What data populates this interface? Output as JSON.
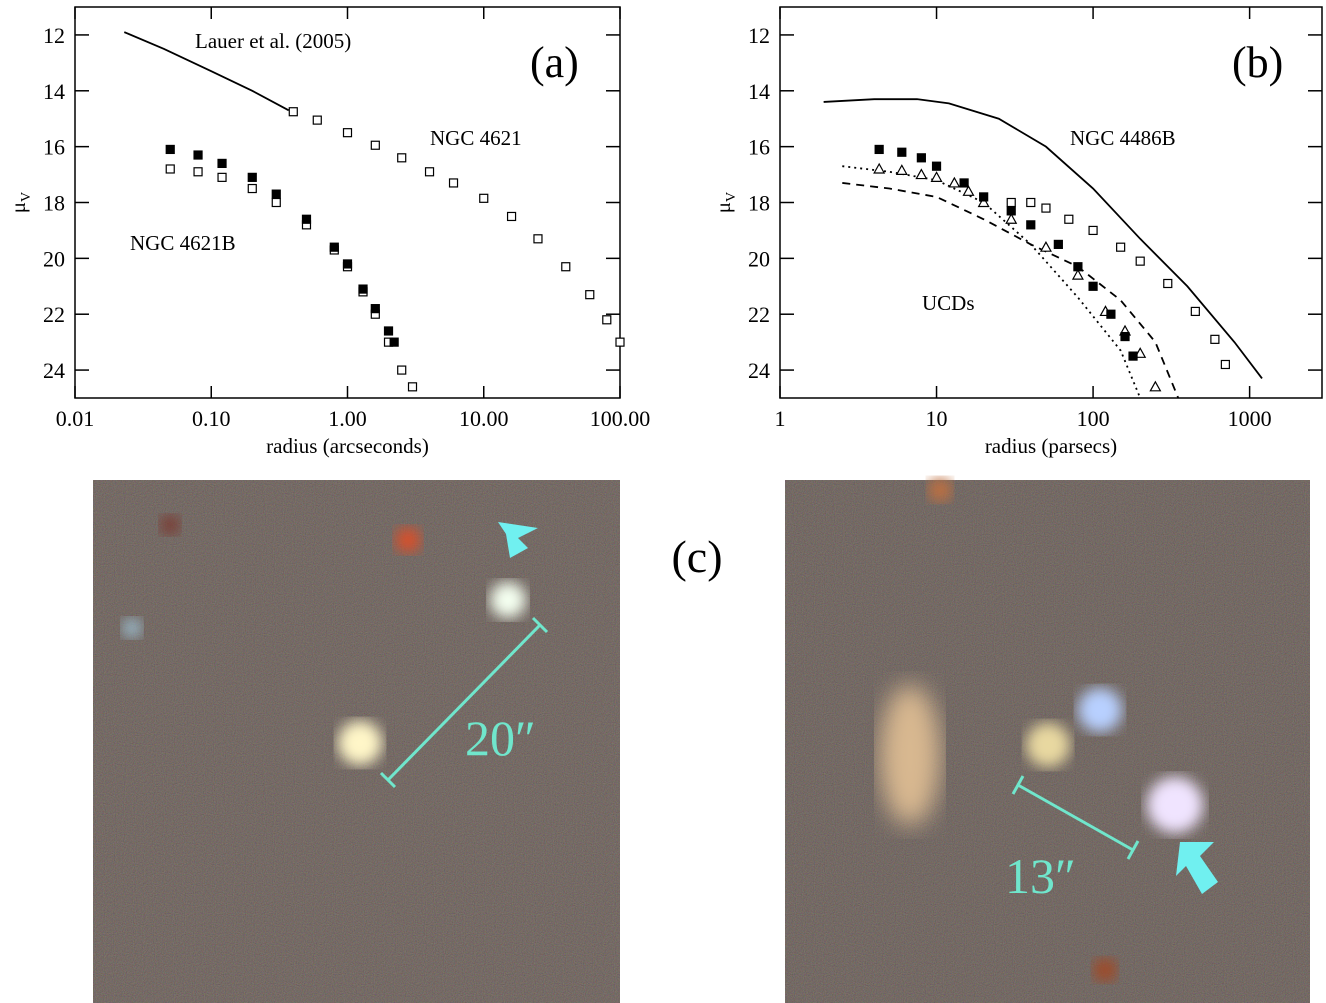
{
  "chart_data": [
    {
      "type": "scatter",
      "label": "(a)",
      "xlabel": "radius (arcseconds)",
      "ylabel": {
        "symbol": "μ",
        "subscript": "V"
      },
      "xscale": "log",
      "xlim": [
        0.01,
        100
      ],
      "ylim": [
        25,
        11
      ],
      "xticks": [
        0.01,
        {
          "value": 0.1,
          "label": "0.10"
        },
        {
          "value": 1,
          "label": "1.00"
        },
        {
          "value": 10,
          "label": "10.00"
        },
        {
          "value": 100,
          "label": "100.00"
        }
      ],
      "yticks": [
        12,
        14,
        16,
        18,
        20,
        22,
        24
      ],
      "annotations": [
        "Lauer et al. (2005)",
        "NGC 4621",
        "NGC 4621B"
      ],
      "series": [
        {
          "marker": "solid-line",
          "color": "#000000",
          "x": [
            0.023,
            0.045,
            0.1,
            0.2,
            0.37
          ],
          "values": [
            11.9,
            12.5,
            13.3,
            14.0,
            14.7
          ]
        },
        {
          "marker": "open-square",
          "color": "#000000",
          "x": [
            0.4,
            0.6,
            1,
            1.6,
            2.5,
            4,
            6,
            10,
            16,
            25,
            40,
            60,
            80,
            100
          ],
          "values": [
            14.75,
            15.05,
            15.5,
            15.95,
            16.4,
            16.9,
            17.3,
            17.85,
            18.5,
            19.3,
            20.3,
            21.3,
            22.2,
            23.0
          ]
        },
        {
          "marker": "open-square",
          "color": "#000000",
          "x": [
            0.05,
            0.08,
            0.12,
            0.2,
            0.3,
            0.5,
            0.8,
            1,
            1.3,
            1.6,
            2,
            2.5,
            3
          ],
          "values": [
            16.8,
            16.9,
            17.1,
            17.5,
            18.0,
            18.8,
            19.7,
            20.3,
            21.2,
            22.0,
            23.0,
            24.0,
            24.6
          ]
        },
        {
          "marker": "filled-square",
          "color": "#000000",
          "x": [
            0.05,
            0.08,
            0.12,
            0.2,
            0.3,
            0.5,
            0.8,
            1,
            1.3,
            1.6,
            2,
            2.2
          ],
          "values": [
            16.1,
            16.3,
            16.6,
            17.1,
            17.7,
            18.6,
            19.6,
            20.2,
            21.1,
            21.8,
            22.6,
            23.0
          ]
        }
      ]
    },
    {
      "type": "scatter",
      "label": "(b)",
      "xlabel": "radius (parsecs)",
      "ylabel": {
        "symbol": "μ",
        "subscript": "V"
      },
      "xscale": "log",
      "xlim": [
        1,
        2900
      ],
      "ylim": [
        25,
        11
      ],
      "xticks": [
        1,
        10,
        100,
        1000
      ],
      "yticks": [
        12,
        14,
        16,
        18,
        20,
        22,
        24
      ],
      "annotations": [
        "NGC 4486B",
        "UCDs"
      ],
      "series": [
        {
          "marker": "solid-line",
          "color": "#000000",
          "x": [
            1.9,
            4,
            7.5,
            12,
            25,
            50,
            100,
            200,
            400,
            800,
            1200
          ],
          "values": [
            14.4,
            14.3,
            14.3,
            14.45,
            15.0,
            16.0,
            17.5,
            19.3,
            21.0,
            23.0,
            24.3
          ]
        },
        {
          "marker": "dotted-line",
          "color": "#000000",
          "x": [
            2.5,
            5,
            10,
            20,
            40,
            80,
            150,
            200
          ],
          "values": [
            16.7,
            16.9,
            17.2,
            18.0,
            19.5,
            21.4,
            23.3,
            25
          ]
        },
        {
          "marker": "dashed-line",
          "color": "#000000",
          "x": [
            2.5,
            5,
            10,
            20,
            40,
            80,
            150,
            250,
            350
          ],
          "values": [
            17.3,
            17.5,
            17.8,
            18.6,
            19.5,
            20.3,
            21.5,
            23.0,
            25
          ]
        },
        {
          "marker": "open-square",
          "color": "#000000",
          "x": [
            30,
            40,
            50,
            70,
            100,
            150,
            200,
            300,
            450,
            600,
            700
          ],
          "values": [
            18.0,
            18.0,
            18.2,
            18.6,
            19.0,
            19.6,
            20.1,
            20.9,
            21.9,
            22.9,
            23.8
          ]
        },
        {
          "marker": "open-triangle",
          "color": "#000000",
          "x": [
            4.3,
            6,
            8,
            10,
            13,
            16,
            20,
            30,
            50,
            80,
            120,
            160,
            200,
            250
          ],
          "values": [
            16.8,
            16.85,
            17.0,
            17.1,
            17.3,
            17.6,
            18.0,
            18.6,
            19.6,
            20.6,
            21.9,
            22.6,
            23.4,
            24.6
          ]
        },
        {
          "marker": "filled-square",
          "color": "#000000",
          "x": [
            4.3,
            6,
            8,
            10,
            15,
            20,
            30,
            40,
            60,
            80,
            100,
            130,
            160,
            180
          ],
          "values": [
            16.1,
            16.2,
            16.4,
            16.7,
            17.3,
            17.8,
            18.3,
            18.8,
            19.5,
            20.3,
            21.0,
            22.0,
            22.8,
            23.5
          ]
        }
      ]
    }
  ],
  "images": {
    "label": "(c)",
    "scales": [
      "20″",
      "13″"
    ]
  }
}
